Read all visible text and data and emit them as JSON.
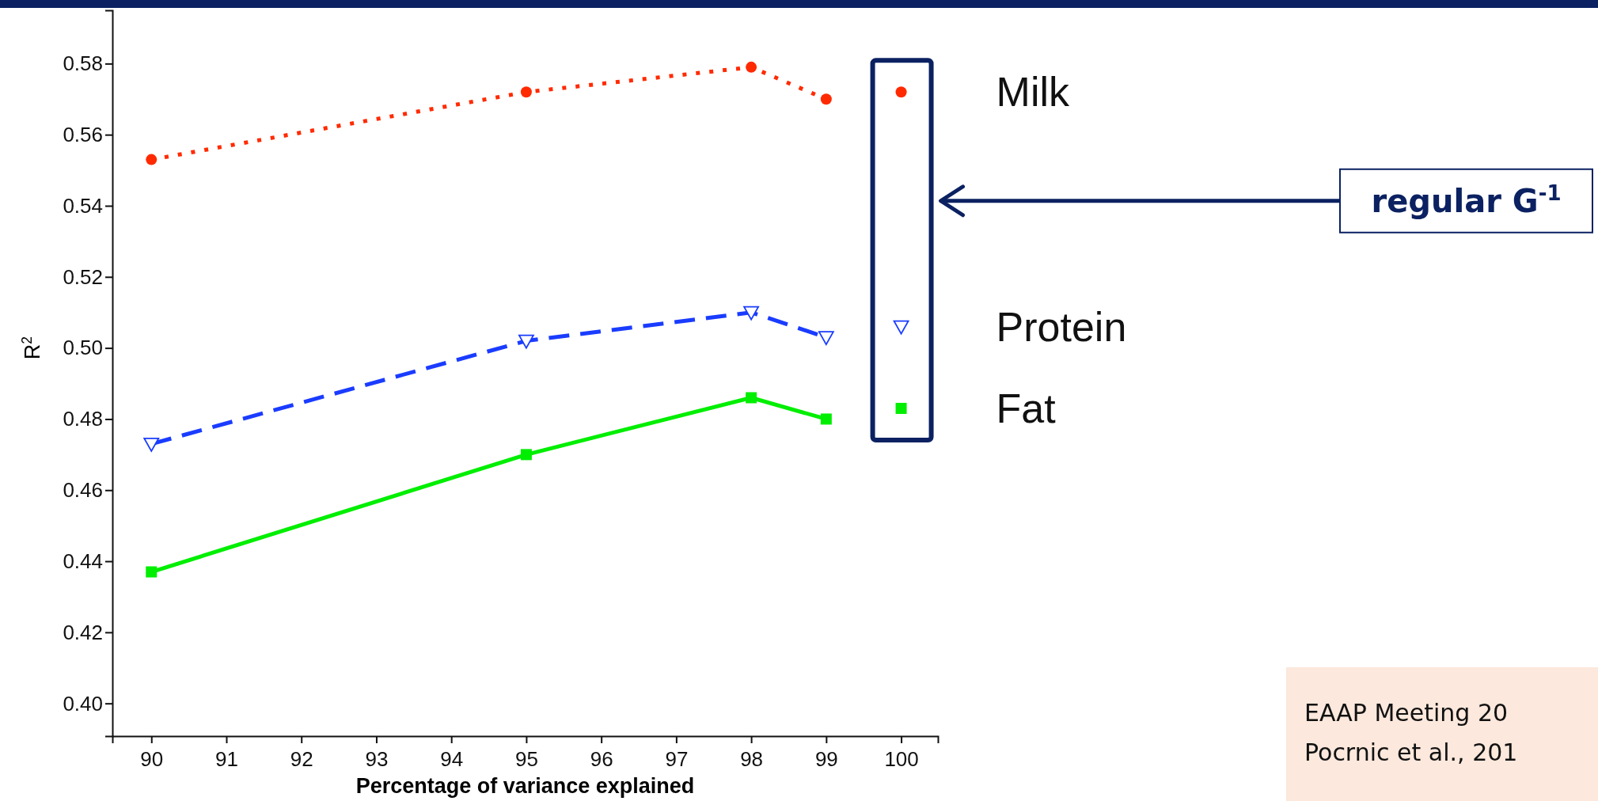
{
  "chart_data": {
    "type": "line",
    "xlabel": "Percentage of variance explained",
    "ylabel": "R$^{2}$",
    "xlim": [
      89.48,
      100.49
    ],
    "ylim": [
      0.3908,
      0.595
    ],
    "xticks": [
      90,
      91,
      92,
      93,
      94,
      95,
      96,
      97,
      98,
      99,
      100
    ],
    "yticks": [
      {
        "value": 0.4,
        "label": "0.40"
      },
      {
        "value": 0.42,
        "label": "0.42"
      },
      {
        "value": 0.44,
        "label": "0.44"
      },
      {
        "value": 0.46,
        "label": "0.46"
      },
      {
        "value": 0.48,
        "label": "0.48"
      },
      {
        "value": 0.5,
        "label": "0.50"
      },
      {
        "value": 0.52,
        "label": "0.52"
      },
      {
        "value": 0.54,
        "label": "0.54"
      },
      {
        "value": 0.56,
        "label": "0.56"
      },
      {
        "value": 0.58,
        "label": "0.58"
      }
    ],
    "grid": false,
    "annotations": [
      "regular G$^{-1}$",
      "EAAP Meeting 20",
      "Pocrnic et al., 201"
    ],
    "series": [
      {
        "x": [
          90,
          95,
          98,
          99
        ],
        "values": [
          0.553,
          0.572,
          0.579,
          0.57
        ],
        "color": "#ff2a00",
        "line_style": "dotted",
        "marker": "circle"
      },
      {
        "x": [
          90,
          95,
          98,
          99
        ],
        "values": [
          0.473,
          0.502,
          0.51,
          0.503
        ],
        "color": "#1a3cff",
        "line_style": "dashed",
        "marker": "triangle"
      },
      {
        "x": [
          90,
          95,
          98,
          99
        ],
        "values": [
          0.437,
          0.47,
          0.486,
          0.48
        ],
        "color": "#00ee00",
        "line_style": "solid",
        "marker": "square"
      },
      {
        "type": "scatter",
        "name": "Milk",
        "x": [
          100
        ],
        "values": [
          0.572
        ],
        "color": "#ff2a00",
        "marker": "circle"
      },
      {
        "type": "scatter",
        "name": "Protein",
        "x": [
          100
        ],
        "values": [
          0.506
        ],
        "color": "#1a3cff",
        "marker": "triangle"
      },
      {
        "type": "scatter",
        "name": "Fat",
        "x": [
          100
        ],
        "values": [
          0.483
        ],
        "color": "#00ee00",
        "marker": "square"
      }
    ]
  }
}
